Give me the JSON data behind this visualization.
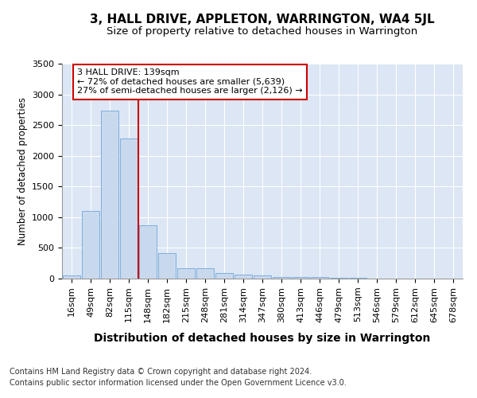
{
  "title": "3, HALL DRIVE, APPLETON, WARRINGTON, WA4 5JL",
  "subtitle": "Size of property relative to detached houses in Warrington",
  "xlabel": "Distribution of detached houses by size in Warrington",
  "ylabel": "Number of detached properties",
  "categories": [
    "16sqm",
    "49sqm",
    "82sqm",
    "115sqm",
    "148sqm",
    "182sqm",
    "215sqm",
    "248sqm",
    "281sqm",
    "314sqm",
    "347sqm",
    "380sqm",
    "413sqm",
    "446sqm",
    "479sqm",
    "513sqm",
    "546sqm",
    "579sqm",
    "612sqm",
    "645sqm",
    "678sqm"
  ],
  "values": [
    50,
    1100,
    2730,
    2280,
    870,
    415,
    175,
    165,
    90,
    60,
    55,
    30,
    28,
    25,
    10,
    8,
    5,
    3,
    2,
    1,
    1
  ],
  "bar_color": "#c9d9ed",
  "bar_edge_color": "#5b9bd5",
  "vline_color": "#cc0000",
  "annotation_text": "3 HALL DRIVE: 139sqm\n← 72% of detached houses are smaller (5,639)\n27% of semi-detached houses are larger (2,126) →",
  "annotation_box_color": "#ffffff",
  "annotation_box_edge": "#cc0000",
  "ylim": [
    0,
    3500
  ],
  "yticks": [
    0,
    500,
    1000,
    1500,
    2000,
    2500,
    3000,
    3500
  ],
  "footer1": "Contains HM Land Registry data © Crown copyright and database right 2024.",
  "footer2": "Contains public sector information licensed under the Open Government Licence v3.0.",
  "bg_color": "#ffffff",
  "plot_bg_color": "#dce6f5",
  "title_fontsize": 11,
  "subtitle_fontsize": 9.5,
  "xlabel_fontsize": 10,
  "ylabel_fontsize": 8.5,
  "tick_fontsize": 8,
  "footer_fontsize": 7,
  "grid_color": "#ffffff"
}
